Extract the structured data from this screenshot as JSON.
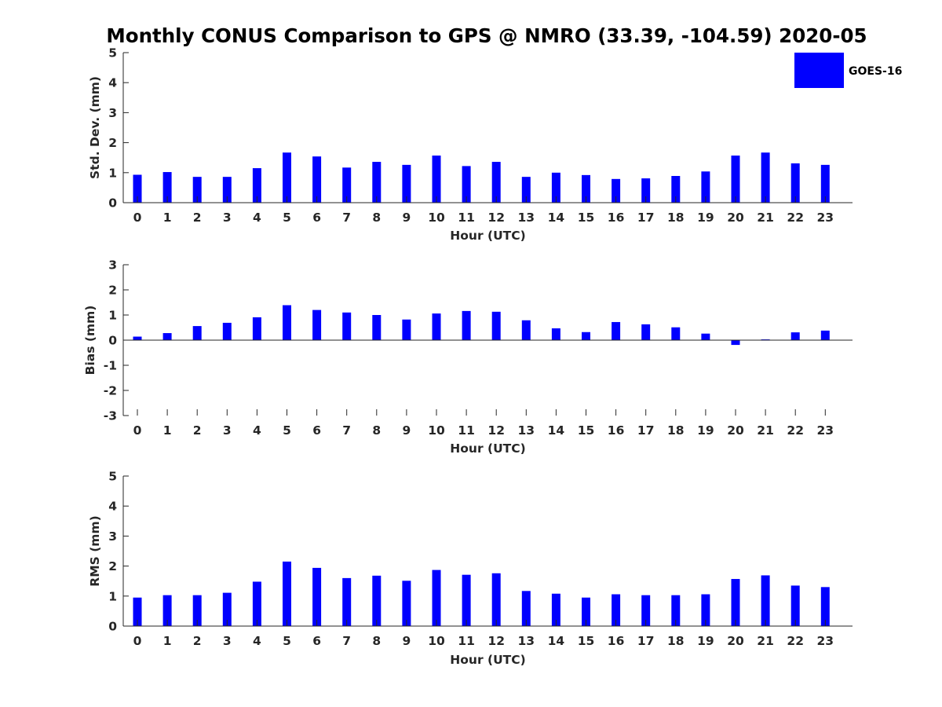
{
  "figure": {
    "title": "Monthly CONUS Comparison to GPS @ NMRO (33.39, -104.59) 2020-05",
    "legend": {
      "label": "GOES-16",
      "color": "#0000ff",
      "position": "top-right"
    }
  },
  "chart_data": [
    {
      "type": "bar",
      "title": "Monthly CONUS Comparison to GPS @ NMRO (33.39, -104.59) 2020-05",
      "xlabel": "Hour (UTC)",
      "ylabel": "Std. Dev. (mm)",
      "ylim": [
        0,
        5
      ],
      "yticks": [
        0,
        1,
        2,
        3,
        4,
        5
      ],
      "categories": [
        "0",
        "1",
        "2",
        "3",
        "4",
        "5",
        "6",
        "7",
        "8",
        "9",
        "10",
        "11",
        "12",
        "13",
        "14",
        "15",
        "16",
        "17",
        "18",
        "19",
        "20",
        "21",
        "22",
        "23"
      ],
      "series": [
        {
          "name": "GOES-16",
          "color": "#0000ff",
          "values": [
            0.93,
            1.02,
            0.86,
            0.86,
            1.15,
            1.67,
            1.54,
            1.17,
            1.36,
            1.26,
            1.57,
            1.22,
            1.36,
            0.86,
            1.0,
            0.92,
            0.79,
            0.81,
            0.89,
            1.04,
            1.57,
            1.67,
            1.31,
            1.26
          ]
        }
      ]
    },
    {
      "type": "bar",
      "xlabel": "Hour (UTC)",
      "ylabel": "Bias (mm)",
      "ylim": [
        -3,
        3
      ],
      "yticks": [
        -3,
        -2,
        -1,
        0,
        1,
        2,
        3
      ],
      "categories": [
        "0",
        "1",
        "2",
        "3",
        "4",
        "5",
        "6",
        "7",
        "8",
        "9",
        "10",
        "11",
        "12",
        "13",
        "14",
        "15",
        "16",
        "17",
        "18",
        "19",
        "20",
        "21",
        "22",
        "23"
      ],
      "series": [
        {
          "name": "GOES-16",
          "color": "#0000ff",
          "values": [
            0.14,
            0.28,
            0.56,
            0.69,
            0.91,
            1.39,
            1.2,
            1.1,
            1.0,
            0.82,
            1.06,
            1.16,
            1.13,
            0.79,
            0.47,
            0.32,
            0.72,
            0.63,
            0.51,
            0.26,
            -0.19,
            0.03,
            0.31,
            0.38
          ]
        }
      ]
    },
    {
      "type": "bar",
      "xlabel": "Hour (UTC)",
      "ylabel": "RMS (mm)",
      "ylim": [
        0,
        5
      ],
      "yticks": [
        0,
        1,
        2,
        3,
        4,
        5
      ],
      "categories": [
        "0",
        "1",
        "2",
        "3",
        "4",
        "5",
        "6",
        "7",
        "8",
        "9",
        "10",
        "11",
        "12",
        "13",
        "14",
        "15",
        "16",
        "17",
        "18",
        "19",
        "20",
        "21",
        "22",
        "23"
      ],
      "series": [
        {
          "name": "GOES-16",
          "color": "#0000ff",
          "values": [
            0.95,
            1.03,
            1.03,
            1.11,
            1.48,
            2.15,
            1.94,
            1.6,
            1.68,
            1.51,
            1.87,
            1.71,
            1.76,
            1.17,
            1.08,
            0.95,
            1.06,
            1.03,
            1.03,
            1.06,
            1.57,
            1.69,
            1.35,
            1.3
          ]
        }
      ]
    }
  ]
}
